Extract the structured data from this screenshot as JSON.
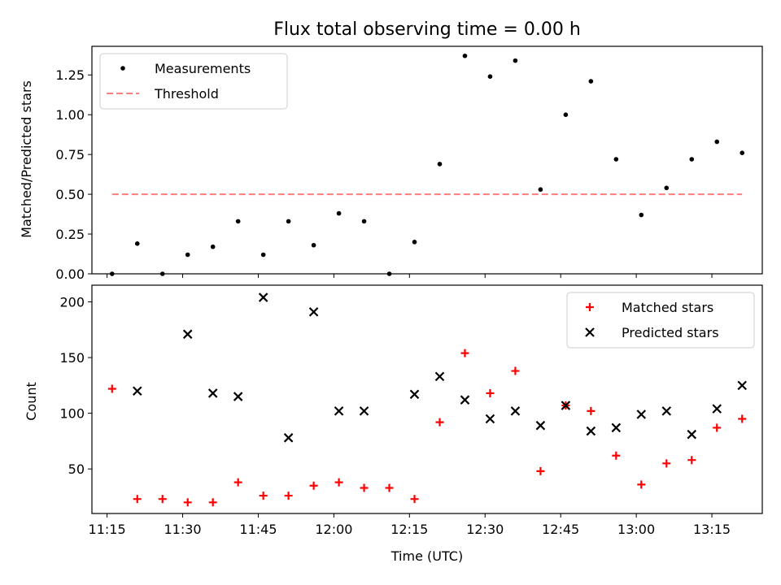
{
  "chart_data": [
    {
      "type": "scatter",
      "title": "Flux total observing time = 0.00 h",
      "xlabel": "",
      "ylabel": "Matched/Predicted stars",
      "ylim": [
        0,
        1.43
      ],
      "yticks": [
        "0.00",
        "0.25",
        "0.50",
        "0.75",
        "1.00",
        "1.25"
      ],
      "legend_position": "top-left",
      "series": [
        {
          "name": "Measurements",
          "marker": "dot",
          "color": "#000000",
          "x": [
            "11:16",
            "11:21",
            "11:26",
            "11:31",
            "11:36",
            "11:41",
            "11:46",
            "11:51",
            "11:56",
            "12:01",
            "12:06",
            "12:11",
            "12:16",
            "12:21",
            "12:26",
            "12:31",
            "12:36",
            "12:41",
            "12:46",
            "12:51",
            "12:56",
            "13:01",
            "13:06",
            "13:11",
            "13:16",
            "13:21"
          ],
          "values": [
            0.0,
            0.19,
            0.0,
            0.12,
            0.17,
            0.33,
            0.12,
            0.33,
            0.18,
            0.38,
            0.33,
            0.0,
            0.2,
            0.69,
            1.37,
            1.24,
            1.34,
            0.53,
            1.0,
            1.21,
            0.72,
            0.37,
            0.54,
            0.72,
            0.83,
            0.76
          ]
        },
        {
          "name": "Threshold",
          "style": "dashed",
          "color": "#ff7f7f",
          "x": [
            "11:16",
            "13:21"
          ],
          "values": [
            0.5,
            0.5
          ]
        }
      ]
    },
    {
      "type": "scatter",
      "title": "",
      "xlabel": "Time (UTC)",
      "ylabel": "Count",
      "ylim": [
        10,
        215
      ],
      "yticks": [
        "50",
        "100",
        "150",
        "200"
      ],
      "xticks": [
        "11:15",
        "11:30",
        "11:45",
        "12:00",
        "12:15",
        "12:30",
        "12:45",
        "13:00",
        "13:15"
      ],
      "legend_position": "top-right",
      "series": [
        {
          "name": "Matched stars",
          "marker": "plus",
          "color": "#ff0000",
          "x": [
            "11:16",
            "11:21",
            "11:26",
            "11:31",
            "11:36",
            "11:41",
            "11:46",
            "11:51",
            "11:56",
            "12:01",
            "12:06",
            "12:11",
            "12:16",
            "12:21",
            "12:26",
            "12:31",
            "12:36",
            "12:41",
            "12:46",
            "12:51",
            "12:56",
            "13:01",
            "13:06",
            "13:11",
            "13:16",
            "13:21"
          ],
          "values": [
            122,
            23,
            23,
            20,
            20,
            38,
            26,
            26,
            35,
            38,
            33,
            33,
            23,
            92,
            154,
            118,
            138,
            48,
            107,
            102,
            62,
            36,
            55,
            58,
            87,
            95
          ]
        },
        {
          "name": "Predicted stars",
          "marker": "x",
          "color": "#000000",
          "x": [
            "11:21",
            "11:31",
            "11:36",
            "11:41",
            "11:46",
            "11:51",
            "11:56",
            "12:01",
            "12:06",
            "12:16",
            "12:21",
            "12:26",
            "12:31",
            "12:36",
            "12:41",
            "12:46",
            "12:51",
            "12:56",
            "13:01",
            "13:06",
            "13:11",
            "13:16",
            "13:21"
          ],
          "values": [
            120,
            171,
            118,
            115,
            204,
            78,
            191,
            102,
            102,
            117,
            133,
            112,
            95,
            102,
            89,
            107,
            84,
            87,
            99,
            102,
            81,
            104,
            125
          ]
        }
      ]
    }
  ]
}
